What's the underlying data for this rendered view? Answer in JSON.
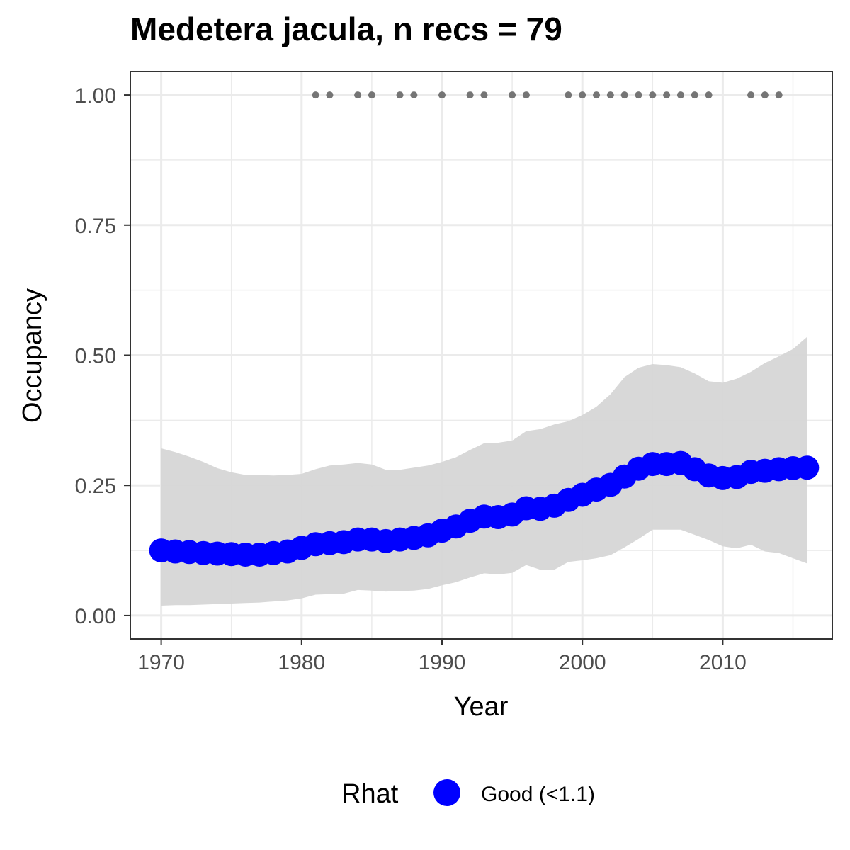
{
  "chart_data": {
    "type": "line",
    "title": "Medetera jacula, n recs = 79",
    "xlabel": "Year",
    "ylabel": "Occupancy",
    "xlim": [
      1967.8,
      2017.8
    ],
    "ylim": [
      -0.045,
      1.045
    ],
    "x_ticks": [
      1970,
      1980,
      1990,
      2000,
      2010
    ],
    "x_tick_labels": [
      "1970",
      "1980",
      "1990",
      "2000",
      "2010"
    ],
    "y_ticks": [
      0,
      0.25,
      0.5,
      0.75,
      1.0
    ],
    "y_tick_labels": [
      "0.00",
      "0.25",
      "0.50",
      "0.75",
      "1.00"
    ],
    "grid": true,
    "legend": {
      "title": "Rhat",
      "position": "bottom",
      "entries": [
        {
          "label": "Good (<1.1)",
          "color": "#0000ff"
        }
      ]
    },
    "series": [
      {
        "name": "Good (<1.1)",
        "color": "#0000ff",
        "x": [
          1970,
          1971,
          1972,
          1973,
          1974,
          1975,
          1976,
          1977,
          1978,
          1979,
          1980,
          1981,
          1982,
          1983,
          1984,
          1985,
          1986,
          1987,
          1988,
          1989,
          1990,
          1991,
          1992,
          1993,
          1994,
          1995,
          1996,
          1997,
          1998,
          1999,
          2000,
          2001,
          2002,
          2003,
          2004,
          2005,
          2006,
          2007,
          2008,
          2009,
          2010,
          2011,
          2012,
          2013,
          2014,
          2015,
          2016
        ],
        "y": [
          0.125,
          0.123,
          0.122,
          0.12,
          0.119,
          0.118,
          0.117,
          0.117,
          0.12,
          0.123,
          0.13,
          0.137,
          0.139,
          0.141,
          0.146,
          0.146,
          0.143,
          0.146,
          0.149,
          0.154,
          0.163,
          0.171,
          0.182,
          0.19,
          0.189,
          0.194,
          0.206,
          0.205,
          0.211,
          0.222,
          0.232,
          0.242,
          0.251,
          0.267,
          0.282,
          0.291,
          0.291,
          0.293,
          0.281,
          0.269,
          0.264,
          0.266,
          0.276,
          0.278,
          0.281,
          0.283,
          0.284
        ]
      }
    ],
    "ribbon": {
      "color": "#d6d6d6",
      "x": [
        1970,
        1971,
        1972,
        1973,
        1974,
        1975,
        1976,
        1977,
        1978,
        1979,
        1980,
        1981,
        1982,
        1983,
        1984,
        1985,
        1986,
        1987,
        1988,
        1989,
        1990,
        1991,
        1992,
        1993,
        1994,
        1995,
        1996,
        1997,
        1998,
        1999,
        2000,
        2001,
        2002,
        2003,
        2004,
        2005,
        2006,
        2007,
        2008,
        2009,
        2010,
        2011,
        2012,
        2013,
        2014,
        2015,
        2016
      ],
      "lower": [
        0.019,
        0.02,
        0.02,
        0.021,
        0.022,
        0.023,
        0.024,
        0.025,
        0.027,
        0.029,
        0.033,
        0.04,
        0.041,
        0.042,
        0.049,
        0.048,
        0.046,
        0.047,
        0.048,
        0.051,
        0.058,
        0.064,
        0.073,
        0.081,
        0.079,
        0.082,
        0.097,
        0.088,
        0.088,
        0.103,
        0.106,
        0.11,
        0.116,
        0.131,
        0.147,
        0.165,
        0.165,
        0.165,
        0.155,
        0.145,
        0.133,
        0.129,
        0.136,
        0.123,
        0.12,
        0.11,
        0.1
      ],
      "upper": [
        0.321,
        0.314,
        0.305,
        0.295,
        0.283,
        0.275,
        0.27,
        0.27,
        0.269,
        0.27,
        0.272,
        0.281,
        0.288,
        0.29,
        0.293,
        0.29,
        0.28,
        0.28,
        0.284,
        0.288,
        0.295,
        0.304,
        0.318,
        0.331,
        0.332,
        0.336,
        0.354,
        0.358,
        0.367,
        0.373,
        0.385,
        0.401,
        0.425,
        0.458,
        0.476,
        0.483,
        0.481,
        0.477,
        0.465,
        0.45,
        0.447,
        0.455,
        0.468,
        0.485,
        0.498,
        0.512,
        0.535
      ]
    },
    "records": {
      "color": "#757575",
      "y": 1.0,
      "x": [
        1981,
        1982,
        1984,
        1985,
        1987,
        1988,
        1990,
        1992,
        1993,
        1995,
        1996,
        1999,
        2000,
        2001,
        2002,
        2003,
        2004,
        2005,
        2006,
        2007,
        2008,
        2009,
        2012,
        2013,
        2014
      ]
    }
  }
}
